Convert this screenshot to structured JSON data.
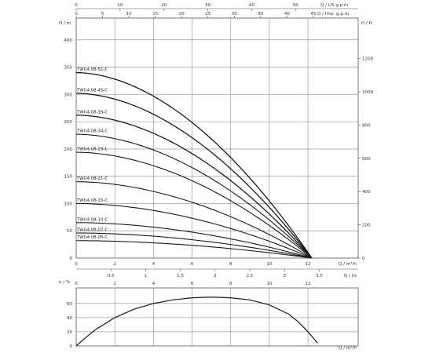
{
  "chart_data": [
    {
      "type": "line",
      "id": "head-curves",
      "axes": {
        "x_bottom": {
          "label": "Q / m³/h",
          "ticks": [
            0,
            2,
            4,
            6,
            8,
            10,
            12
          ],
          "range": [
            0,
            14.6
          ]
        },
        "x_top_usgpm": {
          "label": "Q / US g.p.m.",
          "ticks": [
            0,
            10,
            20,
            30,
            40,
            50
          ],
          "range": [
            0,
            64.3
          ]
        },
        "x_top_impgpm": {
          "label": "Q / Imp. g.p.m.",
          "ticks": [
            0,
            5,
            10,
            15,
            20,
            25,
            30,
            35,
            40,
            45
          ],
          "range": [
            0,
            53.5
          ]
        },
        "y_left": {
          "label": "H / m",
          "ticks": [
            0,
            50,
            100,
            150,
            200,
            250,
            300,
            350,
            400
          ],
          "range": [
            0,
            440
          ]
        },
        "y_right": {
          "label": "H / ft",
          "ticks": [
            0,
            200,
            400,
            600,
            800,
            1000,
            1200
          ],
          "range": [
            0,
            1443.6
          ]
        }
      },
      "grid": true,
      "curve_x_max": 12.2,
      "series": [
        {
          "name": "TWU4.08-51-C",
          "shutoff": 340
        },
        {
          "name": "TWU4.08-45-C",
          "shutoff": 302
        },
        {
          "name": "TWU4.08-39-C",
          "shutoff": 262
        },
        {
          "name": "TWU4.08-34-C",
          "shutoff": 227
        },
        {
          "name": "TWU4.08-29-C",
          "shutoff": 194
        },
        {
          "name": "TWU4.08-21-C",
          "shutoff": 140
        },
        {
          "name": "TWU4.08-15-C",
          "shutoff": 100
        },
        {
          "name": "TWU4.08-10-C",
          "shutoff": 65
        },
        {
          "name": "TWU4.08-07-C",
          "shutoff": 46
        },
        {
          "name": "TWU4.08-05-C",
          "shutoff": 32
        }
      ]
    },
    {
      "type": "line",
      "id": "efficiency-curve",
      "axes": {
        "x_bottom": {
          "label": "Q / m³/h",
          "ticks": [
            0,
            2,
            4,
            6,
            8,
            10,
            12
          ],
          "range": [
            0,
            14.6
          ]
        },
        "x_top_ls": {
          "label": "Q / l/s",
          "ticks": [
            "0,5",
            "1",
            "1,5",
            "2",
            "2,5",
            "3",
            "3,5"
          ],
          "tick_values": [
            0.5,
            1,
            1.5,
            2,
            2.5,
            3,
            3.5
          ],
          "range": [
            0,
            4.06
          ]
        },
        "y_left": {
          "label": "η / %",
          "ticks": [
            0,
            20,
            40,
            60
          ],
          "range": [
            0,
            82
          ]
        }
      },
      "grid": true,
      "series": [
        {
          "name": "",
          "x": [
            0,
            0.5,
            1,
            2,
            3,
            4,
            5,
            6,
            7,
            8,
            9,
            10,
            11,
            11.5,
            12,
            12.5
          ],
          "y": [
            0,
            12,
            23,
            40,
            52,
            60,
            65,
            68,
            69,
            68,
            65,
            58,
            45,
            34,
            20,
            4
          ]
        }
      ]
    }
  ]
}
